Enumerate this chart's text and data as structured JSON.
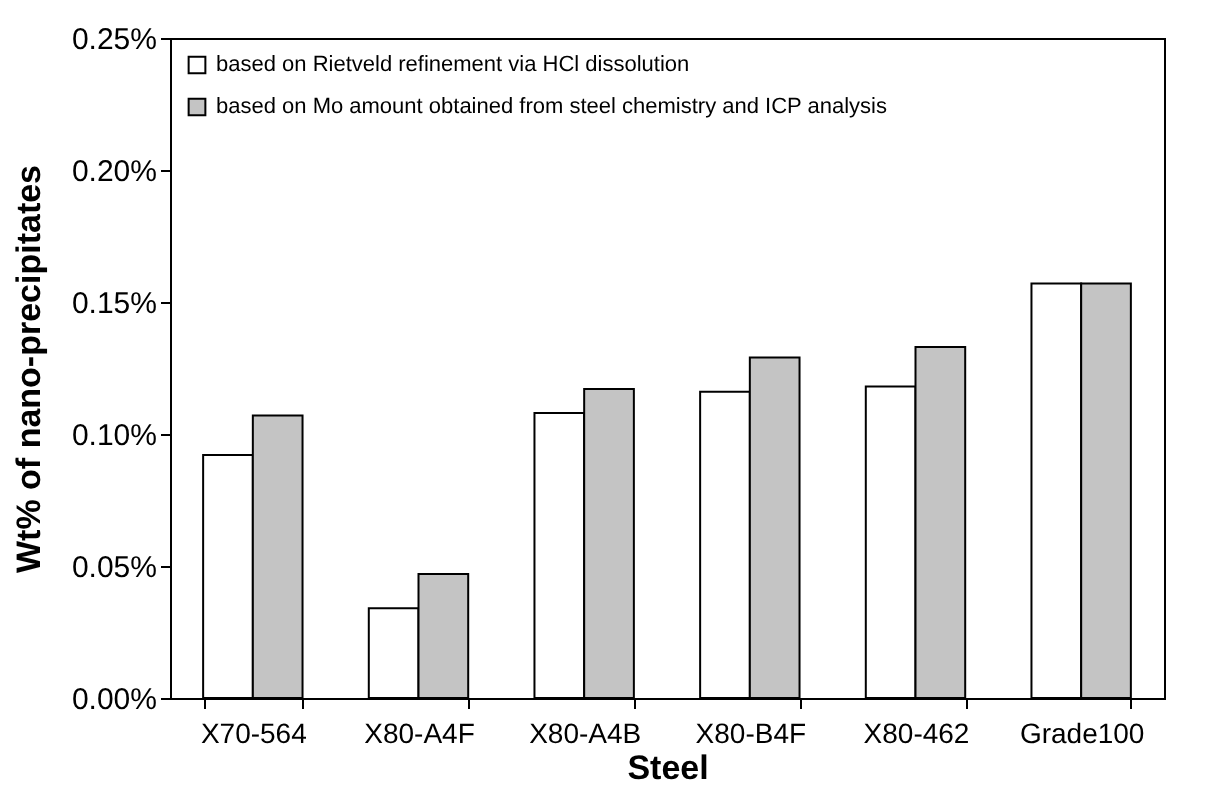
{
  "chart_data": {
    "type": "bar",
    "xlabel": "Steel",
    "ylabel": "Wt% of nano-precipitates",
    "categories": [
      "X70-564",
      "X80-A4F",
      "X80-A4B",
      "X80-B4F",
      "X80-462",
      "Grade100"
    ],
    "series": [
      {
        "name": "based on Rietveld refinement via HCl dissolution",
        "color": "#ffffff",
        "values": [
          0.092,
          0.034,
          0.108,
          0.116,
          0.118,
          0.157
        ]
      },
      {
        "name": "based on Mo amount obtained from steel chemistry and ICP analysis",
        "color": "#c4c4c4",
        "values": [
          0.107,
          0.047,
          0.117,
          0.129,
          0.133,
          0.157
        ]
      }
    ],
    "ylim": [
      0,
      0.25
    ],
    "yticks": [
      {
        "value": 0,
        "label": "0.00%"
      },
      {
        "value": 0.05,
        "label": "0.05%"
      },
      {
        "value": 0.1,
        "label": "0.10%"
      },
      {
        "value": 0.15,
        "label": "0.15%"
      },
      {
        "value": 0.2,
        "label": "0.20%"
      },
      {
        "value": 0.25,
        "label": "0.25%"
      }
    ],
    "grid": false,
    "legend": "top left"
  }
}
